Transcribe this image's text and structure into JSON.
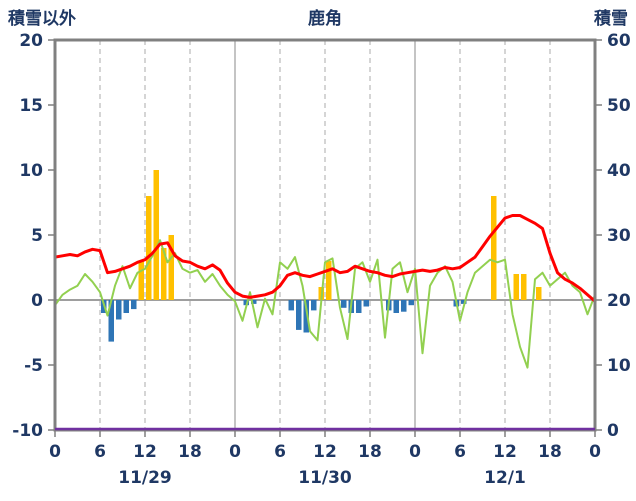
{
  "header": {
    "left_axis_title": "積雪以外",
    "chart_title": "鹿角",
    "right_axis_title": "積雪"
  },
  "chart_data": {
    "type": "mixed",
    "title": "鹿角",
    "hours_total": 72,
    "colors": {
      "grid": "#ABABAB",
      "axis": "#7F7F7F",
      "border": "#808080"
    },
    "left_axis": {
      "label": "積雪以外",
      "min": -10,
      "max": 20,
      "ticks": [
        20,
        15,
        10,
        5,
        0,
        -5,
        -10
      ]
    },
    "right_axis": {
      "label": "積雪",
      "min": 0,
      "max": 60,
      "ticks": [
        60,
        50,
        40,
        30,
        20,
        10,
        0
      ]
    },
    "x_axis": {
      "tick_hours": [
        0,
        6,
        12,
        18,
        24,
        30,
        36,
        42,
        48,
        54,
        60,
        66,
        72
      ],
      "tick_labels": [
        "0",
        "6",
        "12",
        "18",
        "0",
        "6",
        "12",
        "18",
        "0",
        "6",
        "12",
        "18",
        "0"
      ],
      "grid_hours": [
        6,
        12,
        18,
        24,
        30,
        36,
        42,
        48,
        54,
        60,
        66
      ],
      "day_boundaries": [
        24,
        48
      ],
      "day_labels": [
        "11/29",
        "11/30",
        "12/1"
      ]
    },
    "series": [
      {
        "name": "precipitation-bars",
        "type": "bar",
        "color": "#FFC000",
        "values": [
          0,
          0,
          0,
          0,
          0,
          0,
          0,
          0,
          0,
          0,
          0,
          3,
          8,
          10,
          4,
          5,
          0,
          0,
          0,
          0,
          0,
          0,
          0,
          0,
          0,
          0,
          0,
          0,
          0,
          0,
          0,
          0,
          0,
          0,
          0,
          1,
          3,
          0,
          0,
          0,
          0,
          0,
          0,
          0,
          0,
          0,
          0,
          0,
          0,
          0,
          0,
          0,
          0,
          0,
          0,
          0,
          0,
          0,
          8,
          0,
          0,
          2,
          2,
          0,
          1,
          0,
          0,
          0,
          0,
          0,
          0,
          0
        ]
      },
      {
        "name": "negative-bars",
        "type": "bar",
        "color": "#2E75B6",
        "values": [
          0,
          0,
          0,
          0,
          0,
          0,
          -1.0,
          -3.2,
          -1.5,
          -1.0,
          -0.7,
          0,
          0,
          0,
          0,
          0,
          0,
          0,
          0,
          0,
          0,
          0,
          0,
          0,
          0,
          -0.4,
          -0.3,
          0,
          0,
          0,
          0,
          -0.8,
          -2.3,
          -2.5,
          -0.8,
          0,
          0,
          0,
          -0.6,
          -1.0,
          -1.0,
          -0.5,
          0,
          0,
          -0.8,
          -1.0,
          -0.9,
          -0.4,
          0,
          0,
          0,
          0,
          0,
          -0.5,
          -0.3,
          0,
          0,
          0,
          0,
          0,
          0,
          0,
          0,
          0,
          0,
          0,
          0,
          0,
          0,
          0,
          0,
          0
        ]
      },
      {
        "name": "green-line",
        "type": "line",
        "color": "#92D050",
        "width": 2,
        "values": [
          -0.4,
          0.4,
          0.8,
          1.1,
          2.0,
          1.4,
          0.6,
          -1.2,
          1.1,
          2.6,
          0.9,
          2.1,
          2.4,
          3.4,
          4.6,
          2.9,
          3.6,
          2.4,
          2.1,
          2.3,
          1.4,
          2.0,
          1.1,
          0.4,
          -0.1,
          -1.6,
          0.6,
          -2.1,
          0.1,
          -1.1,
          2.9,
          2.4,
          3.3,
          1.1,
          -2.4,
          -3.1,
          2.9,
          3.2,
          -0.6,
          -3.0,
          2.4,
          2.9,
          1.4,
          3.1,
          -2.9,
          2.4,
          2.9,
          0.6,
          2.4,
          -4.1,
          1.1,
          2.1,
          2.6,
          1.4,
          -1.6,
          0.6,
          2.1,
          2.6,
          3.1,
          2.9,
          3.1,
          -1.1,
          -3.6,
          -5.2,
          1.6,
          2.1,
          1.1,
          1.6,
          2.1,
          1.1,
          0.6,
          -1.1,
          0.4
        ]
      },
      {
        "name": "temperature-line",
        "type": "line",
        "color": "#FF0000",
        "width": 3,
        "values": [
          3.3,
          3.4,
          3.5,
          3.4,
          3.7,
          3.9,
          3.8,
          2.1,
          2.2,
          2.4,
          2.6,
          2.9,
          3.1,
          3.6,
          4.3,
          4.4,
          3.4,
          3.0,
          2.9,
          2.6,
          2.4,
          2.7,
          2.3,
          1.3,
          0.6,
          0.3,
          0.2,
          0.3,
          0.4,
          0.6,
          1.1,
          1.9,
          2.1,
          1.9,
          1.8,
          2.0,
          2.2,
          2.4,
          2.1,
          2.2,
          2.6,
          2.4,
          2.2,
          2.1,
          1.9,
          1.8,
          2.0,
          2.1,
          2.2,
          2.3,
          2.2,
          2.3,
          2.5,
          2.4,
          2.5,
          2.9,
          3.3,
          4.1,
          4.9,
          5.6,
          6.3,
          6.5,
          6.5,
          6.2,
          5.9,
          5.5,
          3.6,
          2.1,
          1.6,
          1.3,
          0.9,
          0.4,
          -0.1
        ]
      },
      {
        "name": "snow-depth-line",
        "type": "line",
        "color": "#7030A0",
        "width": 2.5,
        "axis": "right",
        "overlay_bottom": true,
        "constant": 0
      }
    ]
  }
}
